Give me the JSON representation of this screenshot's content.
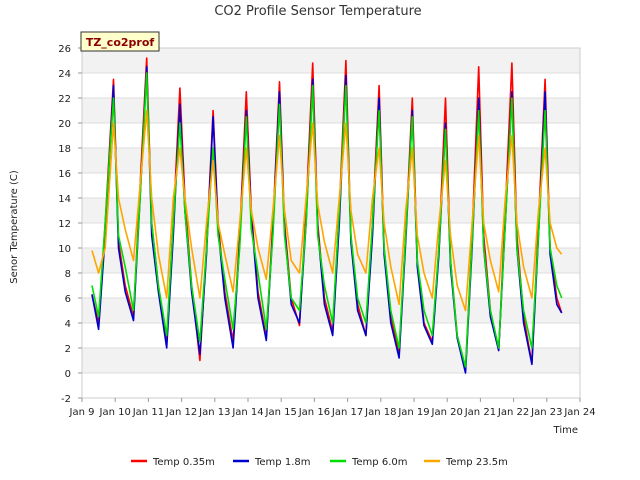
{
  "chart_data": {
    "type": "line",
    "title": "CO2 Profile Sensor Temperature",
    "xlabel": "Time",
    "ylabel": "Senor Temperature (C)",
    "badge": "TZ_co2prof",
    "xlim": [
      9,
      24
    ],
    "ylim": [
      -2,
      26
    ],
    "x_ticks": [
      9,
      10,
      11,
      12,
      13,
      14,
      15,
      16,
      17,
      18,
      19,
      20,
      21,
      22,
      23,
      24
    ],
    "x_tick_labels": [
      "Jan 9",
      "Jan 10",
      "Jan 11",
      "Jan 12",
      "Jan 13",
      "Jan 14",
      "Jan 15",
      "Jan 16",
      "Jan 17",
      "Jan 18",
      "Jan 19",
      "Jan 20",
      "Jan 21",
      "Jan 22",
      "Jan 23",
      "Jan 24"
    ],
    "y_ticks": [
      -2,
      0,
      2,
      4,
      6,
      8,
      10,
      12,
      14,
      16,
      18,
      20,
      22,
      24,
      26
    ],
    "grid": true,
    "legend_position": "bottom",
    "x_unit": "day of January",
    "series": [
      {
        "name": "Temp 0.35m",
        "color": "#ff0000",
        "x": [
          9.3,
          9.5,
          9.7,
          9.95,
          10.1,
          10.3,
          10.55,
          10.75,
          10.95,
          11.1,
          11.3,
          11.55,
          11.75,
          11.95,
          12.1,
          12.3,
          12.55,
          12.75,
          12.95,
          13.1,
          13.3,
          13.55,
          13.75,
          13.95,
          14.1,
          14.3,
          14.55,
          14.75,
          14.95,
          15.1,
          15.3,
          15.55,
          15.75,
          15.95,
          16.1,
          16.3,
          16.55,
          16.75,
          16.95,
          17.1,
          17.3,
          17.55,
          17.75,
          17.95,
          18.1,
          18.3,
          18.55,
          18.75,
          18.95,
          19.1,
          19.3,
          19.55,
          19.75,
          19.95,
          20.1,
          20.3,
          20.55,
          20.75,
          20.95,
          21.1,
          21.3,
          21.55,
          21.75,
          21.95,
          22.1,
          22.3,
          22.55,
          22.75,
          22.95,
          23.1,
          23.3,
          23.45
        ],
        "y": [
          6.2,
          4.0,
          12.0,
          23.5,
          10.5,
          7.0,
          4.5,
          15.0,
          25.2,
          12.0,
          7.0,
          2.5,
          12.0,
          22.8,
          14.0,
          7.0,
          1.0,
          10.0,
          21.0,
          12.0,
          6.5,
          2.5,
          11.0,
          22.5,
          13.0,
          6.5,
          2.8,
          12.0,
          23.3,
          12.0,
          6.0,
          3.8,
          13.0,
          24.8,
          12.0,
          6.0,
          3.3,
          13.0,
          25.0,
          11.0,
          5.5,
          3.0,
          12.0,
          23.0,
          10.0,
          4.5,
          1.5,
          11.0,
          22.0,
          9.0,
          4.0,
          2.5,
          10.0,
          22.0,
          9.0,
          3.0,
          0.2,
          11.0,
          24.5,
          11.0,
          5.0,
          1.8,
          13.0,
          24.8,
          11.0,
          4.5,
          0.8,
          12.0,
          23.5,
          10.0,
          6.0,
          4.8
        ]
      },
      {
        "name": "Temp 1.8m",
        "color": "#0000cc",
        "x": [
          9.3,
          9.5,
          9.7,
          9.95,
          10.1,
          10.3,
          10.55,
          10.75,
          10.95,
          11.1,
          11.3,
          11.55,
          11.75,
          11.95,
          12.1,
          12.3,
          12.55,
          12.75,
          12.95,
          13.1,
          13.3,
          13.55,
          13.75,
          13.95,
          14.1,
          14.3,
          14.55,
          14.75,
          14.95,
          15.1,
          15.3,
          15.55,
          15.75,
          15.95,
          16.1,
          16.3,
          16.55,
          16.75,
          16.95,
          17.1,
          17.3,
          17.55,
          17.75,
          17.95,
          18.1,
          18.3,
          18.55,
          18.75,
          18.95,
          19.1,
          19.3,
          19.55,
          19.75,
          19.95,
          20.1,
          20.3,
          20.55,
          20.75,
          20.95,
          21.1,
          21.3,
          21.55,
          21.75,
          21.95,
          22.1,
          22.3,
          22.55,
          22.75,
          22.95,
          23.1,
          23.3,
          23.45
        ],
        "y": [
          6.3,
          3.5,
          11.0,
          23.0,
          10.0,
          6.5,
          4.2,
          14.0,
          24.5,
          11.0,
          6.5,
          2.0,
          11.0,
          21.5,
          13.0,
          6.5,
          1.5,
          9.5,
          20.5,
          11.5,
          6.0,
          2.0,
          10.5,
          21.0,
          12.5,
          6.0,
          2.6,
          11.5,
          22.5,
          11.5,
          5.5,
          4.0,
          12.0,
          23.5,
          11.5,
          5.5,
          3.0,
          12.0,
          23.8,
          10.5,
          5.0,
          3.0,
          11.0,
          22.0,
          9.5,
          4.0,
          1.2,
          10.5,
          21.0,
          8.5,
          3.8,
          2.3,
          9.5,
          20.0,
          8.5,
          2.8,
          0.0,
          10.0,
          22.0,
          10.0,
          4.5,
          1.8,
          12.0,
          22.5,
          10.0,
          4.0,
          0.7,
          11.0,
          22.5,
          9.5,
          5.5,
          4.8
        ]
      },
      {
        "name": "Temp 6.0m",
        "color": "#00dd00",
        "x": [
          9.3,
          9.5,
          9.7,
          9.95,
          10.1,
          10.3,
          10.55,
          10.75,
          10.95,
          11.1,
          11.3,
          11.55,
          11.75,
          11.95,
          12.1,
          12.3,
          12.55,
          12.75,
          12.95,
          13.1,
          13.3,
          13.55,
          13.75,
          13.95,
          14.1,
          14.3,
          14.55,
          14.75,
          14.95,
          15.1,
          15.3,
          15.55,
          15.75,
          15.95,
          16.1,
          16.3,
          16.55,
          16.75,
          16.95,
          17.1,
          17.3,
          17.55,
          17.75,
          17.95,
          18.1,
          18.3,
          18.55,
          18.75,
          18.95,
          19.1,
          19.3,
          19.55,
          19.75,
          19.95,
          20.1,
          20.3,
          20.55,
          20.75,
          20.95,
          21.1,
          21.3,
          21.55,
          21.75,
          21.95,
          22.1,
          22.3,
          22.55,
          22.75,
          22.95,
          23.1,
          23.3,
          23.45
        ],
        "y": [
          7.0,
          4.5,
          12.0,
          22.0,
          11.0,
          8.5,
          5.0,
          14.0,
          24.0,
          12.0,
          7.0,
          3.0,
          12.0,
          20.0,
          13.0,
          7.0,
          2.5,
          10.0,
          18.0,
          11.0,
          7.5,
          3.5,
          10.0,
          20.5,
          11.5,
          8.0,
          3.5,
          11.0,
          21.5,
          11.0,
          6.0,
          5.0,
          12.0,
          23.0,
          11.0,
          7.0,
          4.0,
          13.0,
          23.0,
          11.0,
          6.0,
          4.0,
          12.0,
          21.0,
          10.0,
          5.0,
          2.0,
          11.0,
          20.5,
          9.0,
          5.0,
          3.0,
          10.0,
          19.5,
          9.0,
          3.0,
          0.5,
          10.5,
          21.0,
          10.0,
          5.0,
          2.0,
          12.0,
          22.0,
          10.0,
          5.0,
          2.0,
          11.0,
          21.0,
          10.0,
          7.0,
          6.0
        ]
      },
      {
        "name": "Temp 23.5m",
        "color": "#ffa500",
        "x": [
          9.3,
          9.5,
          9.7,
          9.95,
          10.1,
          10.3,
          10.55,
          10.75,
          10.95,
          11.1,
          11.3,
          11.55,
          11.75,
          11.95,
          12.1,
          12.3,
          12.55,
          12.75,
          12.95,
          13.1,
          13.3,
          13.55,
          13.75,
          13.95,
          14.1,
          14.3,
          14.55,
          14.75,
          14.95,
          15.1,
          15.3,
          15.55,
          15.75,
          15.95,
          16.1,
          16.3,
          16.55,
          16.75,
          16.95,
          17.1,
          17.3,
          17.55,
          17.75,
          17.95,
          18.1,
          18.3,
          18.55,
          18.75,
          18.95,
          19.1,
          19.3,
          19.55,
          19.75,
          19.95,
          20.1,
          20.3,
          20.55,
          20.75,
          20.95,
          21.1,
          21.3,
          21.55,
          21.75,
          21.95,
          22.1,
          22.3,
          22.55,
          22.75,
          22.95,
          23.1,
          23.3,
          23.45
        ],
        "y": [
          9.8,
          8.0,
          10.0,
          20.0,
          14.0,
          11.5,
          9.0,
          15.0,
          21.0,
          14.0,
          9.5,
          6.0,
          14.0,
          18.0,
          14.0,
          10.0,
          6.0,
          12.0,
          17.0,
          12.0,
          9.5,
          6.5,
          12.0,
          18.0,
          13.0,
          10.0,
          7.5,
          13.0,
          19.0,
          13.0,
          9.0,
          8.0,
          14.0,
          20.0,
          13.5,
          10.5,
          8.0,
          14.0,
          20.0,
          13.0,
          9.5,
          8.0,
          14.0,
          18.0,
          12.0,
          8.5,
          5.5,
          13.0,
          18.0,
          11.0,
          8.0,
          6.0,
          12.0,
          17.0,
          11.0,
          7.0,
          5.0,
          12.0,
          19.0,
          12.0,
          9.0,
          6.5,
          14.0,
          19.0,
          12.0,
          8.5,
          6.0,
          13.0,
          18.0,
          12.0,
          10.0,
          9.5
        ]
      }
    ]
  }
}
